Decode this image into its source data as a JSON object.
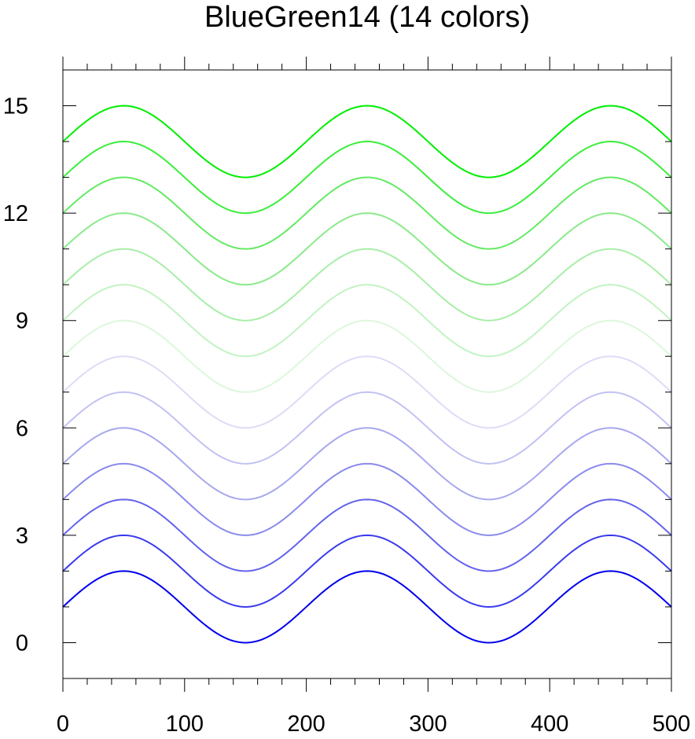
{
  "chart_data": {
    "type": "line",
    "title": "BlueGreen14 (14 colors)",
    "xlabel": "",
    "ylabel": "",
    "xlim": [
      0,
      500
    ],
    "ylim": [
      -1,
      16
    ],
    "xticks": [
      0,
      100,
      200,
      300,
      400,
      500
    ],
    "xtick_labels": [
      "0",
      "100",
      "200",
      "300",
      "400",
      "500"
    ],
    "yticks": [
      0,
      3,
      6,
      9,
      12,
      15
    ],
    "ytick_labels": [
      "0",
      "3",
      "6",
      "9",
      "12",
      "15"
    ],
    "grid": false,
    "curve": "y = offset + 1 + sin(2*pi*x/200)",
    "x": [
      0,
      25,
      50,
      75,
      100,
      125,
      150,
      175,
      200,
      225,
      250,
      275,
      300,
      325,
      350,
      375,
      400,
      425,
      450,
      475,
      500
    ],
    "series": [
      {
        "offset": 0,
        "color": "#0000ee",
        "values": [
          1,
          1.707,
          2,
          1.707,
          1,
          0.293,
          0,
          0.293,
          1,
          1.707,
          2,
          1.707,
          1,
          0.293,
          0,
          0.293,
          1,
          1.707,
          2,
          1.707,
          1
        ]
      },
      {
        "offset": 1,
        "color": "#3a3aee",
        "values": [
          2,
          2.707,
          3,
          2.707,
          2,
          1.293,
          1,
          1.293,
          2,
          2.707,
          3,
          2.707,
          2,
          1.293,
          1,
          1.293,
          2,
          2.707,
          3,
          2.707,
          2
        ]
      },
      {
        "offset": 2,
        "color": "#6363ee",
        "values": [
          3,
          3.707,
          4,
          3.707,
          3,
          2.293,
          2,
          2.293,
          3,
          3.707,
          4,
          3.707,
          3,
          2.293,
          2,
          2.293,
          3,
          3.707,
          4,
          3.707,
          3
        ]
      },
      {
        "offset": 3,
        "color": "#8a8aee",
        "values": [
          4,
          4.707,
          5,
          4.707,
          4,
          3.293,
          3,
          3.293,
          4,
          4.707,
          5,
          4.707,
          4,
          3.293,
          3,
          3.293,
          4,
          4.707,
          5,
          4.707,
          4
        ]
      },
      {
        "offset": 4,
        "color": "#a8a8f0",
        "values": [
          5,
          5.707,
          6,
          5.707,
          5,
          4.293,
          4,
          4.293,
          5,
          5.707,
          6,
          5.707,
          5,
          4.293,
          4,
          4.293,
          5,
          5.707,
          6,
          5.707,
          5
        ]
      },
      {
        "offset": 5,
        "color": "#c2c2f3",
        "values": [
          6,
          6.707,
          7,
          6.707,
          6,
          5.293,
          5,
          5.293,
          6,
          6.707,
          7,
          6.707,
          6,
          5.293,
          5,
          5.293,
          6,
          6.707,
          7,
          6.707,
          6
        ]
      },
      {
        "offset": 6,
        "color": "#dcdcf7",
        "values": [
          7,
          7.707,
          8,
          7.707,
          7,
          6.293,
          6,
          6.293,
          7,
          7.707,
          8,
          7.707,
          7,
          6.293,
          6,
          6.293,
          7,
          7.707,
          8,
          7.707,
          7
        ]
      },
      {
        "offset": 7,
        "color": "#dcf7dc",
        "values": [
          8,
          8.707,
          9,
          8.707,
          8,
          7.293,
          7,
          7.293,
          8,
          8.707,
          9,
          8.707,
          8,
          7.293,
          7,
          7.293,
          8,
          8.707,
          9,
          8.707,
          8
        ]
      },
      {
        "offset": 8,
        "color": "#c2f3c2",
        "values": [
          9,
          9.707,
          10,
          9.707,
          9,
          8.293,
          8,
          8.293,
          9,
          9.707,
          10,
          9.707,
          9,
          8.293,
          8,
          8.293,
          9,
          9.707,
          10,
          9.707,
          9
        ]
      },
      {
        "offset": 9,
        "color": "#a8eea8",
        "values": [
          10,
          10.707,
          11,
          10.707,
          10,
          9.293,
          9,
          9.293,
          10,
          10.707,
          11,
          10.707,
          10,
          9.293,
          9,
          9.293,
          10,
          10.707,
          11,
          10.707,
          10
        ]
      },
      {
        "offset": 10,
        "color": "#8aea8a",
        "values": [
          11,
          11.707,
          12,
          11.707,
          11,
          10.293,
          10,
          10.293,
          11,
          11.707,
          12,
          11.707,
          11,
          10.293,
          10,
          10.293,
          11,
          11.707,
          12,
          11.707,
          11
        ]
      },
      {
        "offset": 11,
        "color": "#63ea63",
        "values": [
          12,
          12.707,
          13,
          12.707,
          12,
          11.293,
          11,
          11.293,
          12,
          12.707,
          13,
          12.707,
          12,
          11.293,
          11,
          11.293,
          12,
          12.707,
          13,
          12.707,
          12
        ]
      },
      {
        "offset": 12,
        "color": "#3aee3a",
        "values": [
          13,
          13.707,
          14,
          13.707,
          13,
          12.293,
          12,
          12.293,
          13,
          13.707,
          14,
          13.707,
          13,
          12.293,
          12,
          12.293,
          13,
          13.707,
          14,
          13.707,
          13
        ]
      },
      {
        "offset": 13,
        "color": "#00ee00",
        "values": [
          14,
          14.707,
          15,
          14.707,
          14,
          13.293,
          13,
          13.293,
          14,
          14.707,
          15,
          14.707,
          14,
          13.293,
          13,
          13.293,
          14,
          14.707,
          15,
          14.707,
          14
        ]
      }
    ]
  }
}
